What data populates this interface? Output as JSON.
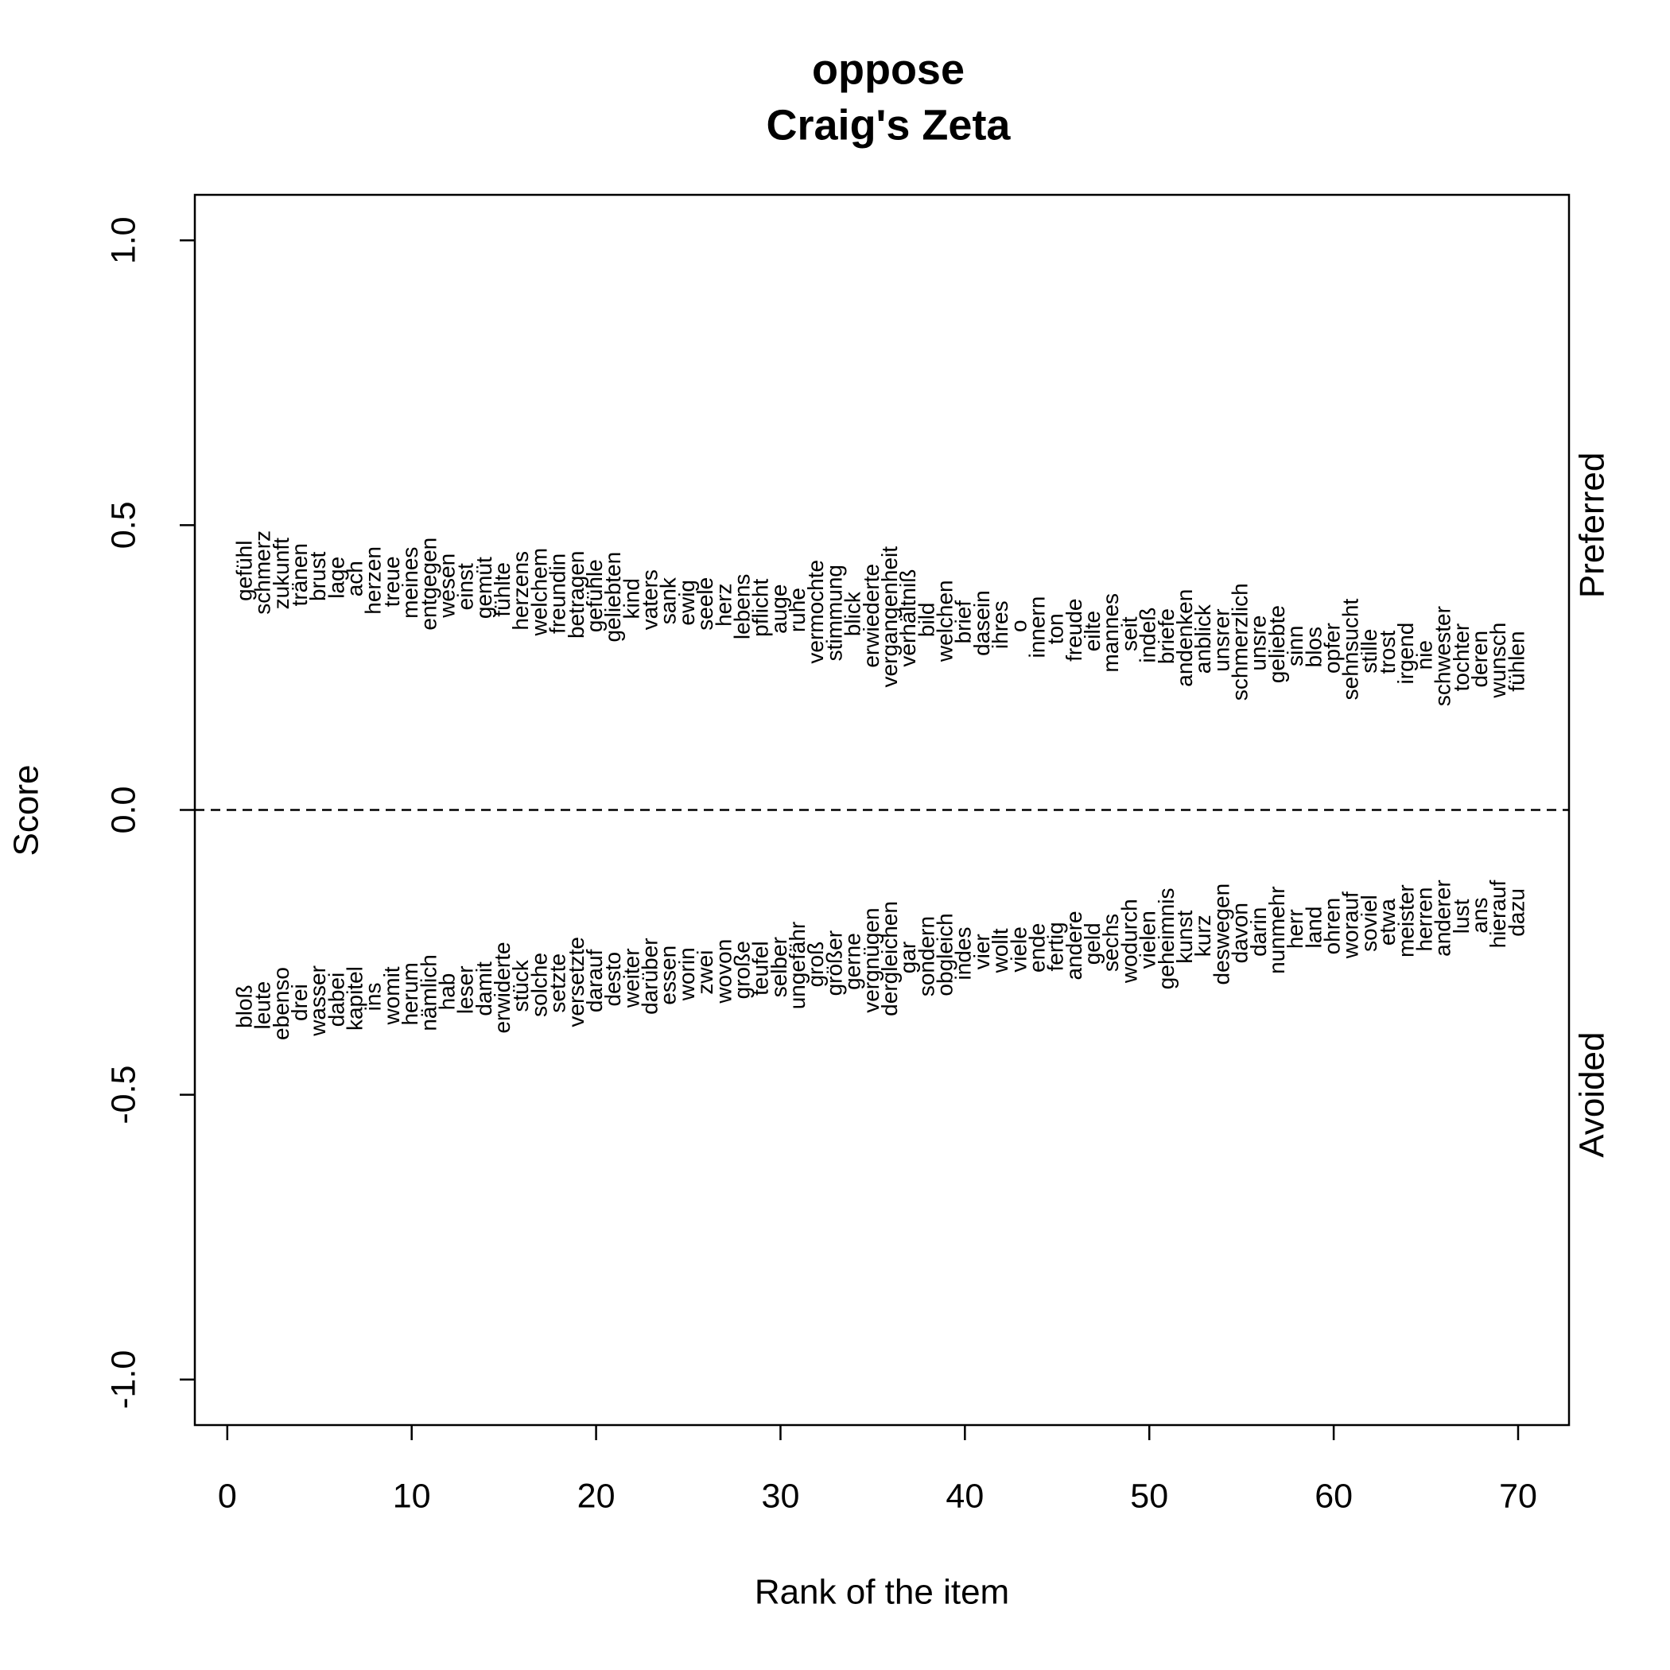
{
  "chart_data": {
    "type": "word-scatter",
    "title": "oppose",
    "subtitle": "Craig's Zeta",
    "x_label": "Rank of the item",
    "y_label": "Score",
    "xlim": [
      -1.76,
      72.76
    ],
    "ylim": [
      -1.08,
      1.08
    ],
    "xticks": [
      0,
      10,
      20,
      30,
      40,
      50,
      60,
      70
    ],
    "yticks": [
      {
        "value": -1,
        "label": "-1.0"
      },
      {
        "value": -0.5,
        "label": "-0.5"
      },
      {
        "value": 0,
        "label": "0.0"
      },
      {
        "value": 0.5,
        "label": "0.5"
      },
      {
        "value": 1,
        "label": "1.0"
      }
    ],
    "reference_line": 0,
    "color": "#000000",
    "series": [
      {
        "name": "Preferred",
        "labels": [
          "gefühl",
          "schmerz",
          "zukunft",
          "tränen",
          "brust",
          "lage",
          "ach",
          "herzen",
          "treue",
          "meines",
          "entgegen",
          "wesen",
          "einst",
          "gemüt",
          "fühlte",
          "herzens",
          "welchem",
          "freundin",
          "betragen",
          "gefühle",
          "geliebten",
          "kind",
          "vaters",
          "sank",
          "ewig",
          "seele",
          "herz",
          "lebens",
          "pflicht",
          "auge",
          "ruhe",
          "vermochte",
          "stimmung",
          "blick",
          "erwiederte",
          "vergangenheit",
          "verhältniß",
          "bild",
          "welchen",
          "brief",
          "dasein",
          "ihres",
          "o",
          "innern",
          "ton",
          "freude",
          "eilte",
          "mannes",
          "seit",
          "indeß",
          "briefe",
          "andenken",
          "anblick",
          "unsrer",
          "schmerzlich",
          "unsre",
          "geliebte",
          "sinn",
          "blos",
          "opfer",
          "sehnsucht",
          "stille",
          "trost",
          "irgend",
          "nie",
          "schwester",
          "tochter",
          "deren",
          "wunsch",
          "fühlen"
        ],
        "x": [
          1,
          2,
          3,
          4,
          5,
          6,
          7,
          8,
          9,
          10,
          11,
          12,
          13,
          14,
          15,
          16,
          17,
          18,
          19,
          20,
          21,
          22,
          23,
          24,
          25,
          26,
          27,
          28,
          29,
          30,
          31,
          32,
          33,
          34,
          35,
          36,
          37,
          38,
          39,
          40,
          41,
          42,
          43,
          44,
          45,
          46,
          47,
          48,
          49,
          50,
          51,
          52,
          53,
          54,
          55,
          56,
          57,
          58,
          59,
          60,
          61,
          62,
          63,
          64,
          65,
          66,
          67,
          68,
          69,
          70
        ],
        "values": [
          0.42,
          0.417,
          0.415,
          0.413,
          0.41,
          0.408,
          0.406,
          0.403,
          0.401,
          0.399,
          0.397,
          0.394,
          0.392,
          0.39,
          0.387,
          0.385,
          0.383,
          0.38,
          0.378,
          0.376,
          0.374,
          0.371,
          0.369,
          0.367,
          0.364,
          0.362,
          0.36,
          0.357,
          0.355,
          0.353,
          0.351,
          0.348,
          0.346,
          0.344,
          0.341,
          0.339,
          0.337,
          0.334,
          0.332,
          0.33,
          0.328,
          0.325,
          0.323,
          0.321,
          0.318,
          0.316,
          0.314,
          0.311,
          0.309,
          0.307,
          0.305,
          0.302,
          0.3,
          0.298,
          0.295,
          0.293,
          0.291,
          0.288,
          0.286,
          0.284,
          0.282,
          0.279,
          0.277,
          0.275,
          0.272,
          0.27,
          0.268,
          0.265,
          0.263,
          0.261
        ]
      },
      {
        "name": "Avoided",
        "labels": [
          "bloß",
          "leute",
          "ebenso",
          "drei",
          "wasser",
          "dabei",
          "kapitel",
          "ins",
          "womit",
          "herum",
          "nämlich",
          "hab",
          "leser",
          "damit",
          "erwiderte",
          "stück",
          "solche",
          "setzte",
          "versetzte",
          "darauf",
          "desto",
          "weiter",
          "darüber",
          "essen",
          "worin",
          "zwei",
          "wovon",
          "große",
          "teufel",
          "selber",
          "ungefähr",
          "groß",
          "größer",
          "gerne",
          "vergnügen",
          "dergleichen",
          "gar",
          "sondern",
          "obgleich",
          "indes",
          "vier",
          "wollt",
          "viele",
          "ende",
          "fertig",
          "andere",
          "geld",
          "sechs",
          "wodurch",
          "vielen",
          "geheimnis",
          "kunst",
          "kurz",
          "deswegen",
          "davon",
          "darin",
          "nunmehr",
          "herr",
          "land",
          "ohren",
          "worauf",
          "soviel",
          "etwa",
          "meister",
          "herren",
          "anderer",
          "lust",
          "ans",
          "hierauf",
          "dazu"
        ],
        "x": [
          1,
          2,
          3,
          4,
          5,
          6,
          7,
          8,
          9,
          10,
          11,
          12,
          13,
          14,
          15,
          16,
          17,
          18,
          19,
          20,
          21,
          22,
          23,
          24,
          25,
          26,
          27,
          28,
          29,
          30,
          31,
          32,
          33,
          34,
          35,
          36,
          37,
          38,
          39,
          40,
          41,
          42,
          43,
          44,
          45,
          46,
          47,
          48,
          49,
          50,
          51,
          52,
          53,
          54,
          55,
          56,
          57,
          58,
          59,
          60,
          61,
          62,
          63,
          64,
          65,
          66,
          67,
          68,
          69,
          70
        ],
        "values": [
          -0.345,
          -0.343,
          -0.34,
          -0.338,
          -0.335,
          -0.333,
          -0.331,
          -0.328,
          -0.326,
          -0.323,
          -0.321,
          -0.319,
          -0.316,
          -0.314,
          -0.312,
          -0.309,
          -0.307,
          -0.304,
          -0.302,
          -0.3,
          -0.297,
          -0.295,
          -0.292,
          -0.29,
          -0.288,
          -0.285,
          -0.283,
          -0.281,
          -0.278,
          -0.276,
          -0.273,
          -0.271,
          -0.269,
          -0.266,
          -0.264,
          -0.261,
          -0.259,
          -0.257,
          -0.254,
          -0.252,
          -0.249,
          -0.247,
          -0.245,
          -0.242,
          -0.24,
          -0.238,
          -0.235,
          -0.233,
          -0.23,
          -0.228,
          -0.226,
          -0.223,
          -0.221,
          -0.218,
          -0.216,
          -0.214,
          -0.211,
          -0.209,
          -0.206,
          -0.204,
          -0.202,
          -0.199,
          -0.197,
          -0.195,
          -0.192,
          -0.19,
          -0.187,
          -0.185,
          -0.183,
          -0.18
        ]
      }
    ]
  }
}
